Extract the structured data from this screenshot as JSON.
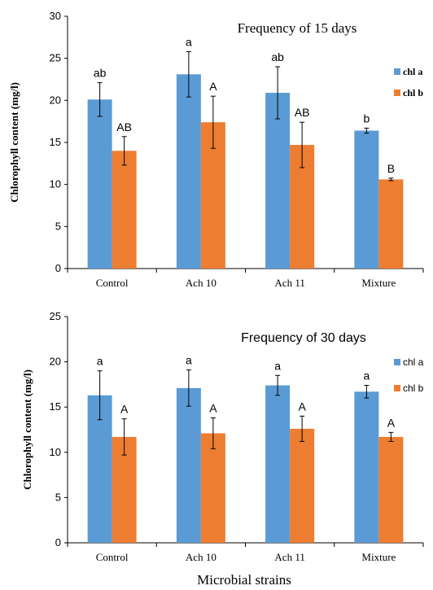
{
  "colors": {
    "series_a": "#5b9bd5",
    "series_b": "#ed7d31",
    "axis": "#000000",
    "errorbar": "#000000"
  },
  "chart_data": [
    {
      "type": "bar",
      "title": "Frequency of 15 days",
      "xlabel": "",
      "ylabel": "Chlorophyll content (mg/l)",
      "ylim": [
        0,
        30
      ],
      "yticks": [
        "0",
        "5",
        "10",
        "15",
        "20",
        "25",
        "30"
      ],
      "categories": [
        "Control",
        "Ach 10",
        "Ach 11",
        "Mixture"
      ],
      "legend_position": "right",
      "series": [
        {
          "name": "chl a",
          "values": [
            20.1,
            23.1,
            20.9,
            16.4
          ],
          "errors": [
            2.0,
            2.7,
            3.1,
            0.3
          ],
          "labels": [
            "ab",
            "a",
            "ab",
            "b"
          ]
        },
        {
          "name": "chl b",
          "values": [
            14.0,
            17.4,
            14.7,
            10.6
          ],
          "errors": [
            1.7,
            3.1,
            2.7,
            0.15
          ],
          "labels": [
            "AB",
            "A",
            "AB",
            "B"
          ]
        }
      ]
    },
    {
      "type": "bar",
      "title": "Frequency of 30 days",
      "xlabel": "",
      "ylabel": "Chlorophyll content (mg/l)",
      "ylim": [
        0,
        25
      ],
      "yticks": [
        "0",
        "5",
        "10",
        "15",
        "20",
        "25"
      ],
      "categories": [
        "Control",
        "Ach 10",
        "Ach 11",
        "Mixture"
      ],
      "legend_position": "right",
      "series": [
        {
          "name": "chl a",
          "values": [
            16.3,
            17.1,
            17.4,
            16.7
          ],
          "errors": [
            2.7,
            2.0,
            1.1,
            0.7
          ],
          "labels": [
            "a",
            "a",
            "a",
            "a"
          ]
        },
        {
          "name": "chl b",
          "values": [
            11.7,
            12.1,
            12.6,
            11.7
          ],
          "errors": [
            2.0,
            1.7,
            1.4,
            0.5
          ],
          "labels": [
            "A",
            "A",
            "A",
            "A"
          ]
        }
      ]
    }
  ],
  "shared_xlabel": "Microbial strains"
}
